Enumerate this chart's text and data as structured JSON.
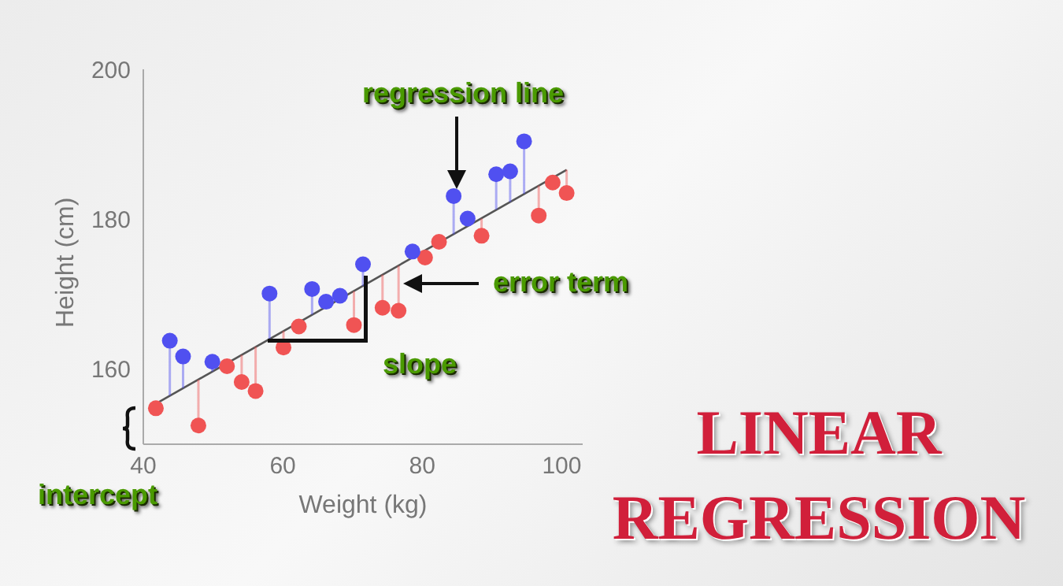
{
  "chart_data": {
    "type": "scatter",
    "title": "LINEAR REGRESSION",
    "xlabel": "Weight (kg)",
    "ylabel": "Height (cm)",
    "annotations": [
      "regression line",
      "error term",
      "slope",
      "intercept"
    ],
    "xlim": [
      40,
      103
    ],
    "ylim": [
      150,
      200
    ],
    "xticks": [
      40,
      60,
      80,
      100
    ],
    "yticks": [
      160,
      180,
      200
    ],
    "grid": false,
    "legend": false,
    "marker": "circle",
    "series": [
      {
        "color": "#f05454",
        "x": [
          41.8,
          47.9,
          52.0,
          54.1,
          56.1,
          60.1,
          62.3,
          70.2,
          74.3,
          76.6,
          80.4,
          82.4,
          88.5,
          96.7,
          98.7,
          100.7
        ],
        "values": [
          154.8,
          152.5,
          160.4,
          158.3,
          157.1,
          162.9,
          165.7,
          165.9,
          168.2,
          167.8,
          174.9,
          177.0,
          177.8,
          180.5,
          184.9,
          183.5
        ],
        "errors": [
          [
            154.8,
            155.4
          ],
          [
            152.5,
            158.6
          ],
          [
            160.4,
            160.8
          ],
          [
            158.3,
            161.9
          ],
          [
            157.1,
            163.0
          ],
          [
            162.9,
            165.1
          ],
          [
            165.7,
            166.3
          ],
          [
            165.9,
            170.4
          ],
          [
            168.2,
            172.6
          ],
          [
            167.8,
            173.8
          ],
          [
            174.9,
            175.8
          ],
          null,
          [
            177.8,
            180.1
          ],
          [
            180.5,
            184.5
          ],
          [
            184.9,
            185.5
          ],
          [
            183.5,
            186.6
          ]
        ]
      },
      {
        "color": "#5050f0",
        "x": [
          43.8,
          45.7,
          49.9,
          58.1,
          64.2,
          66.2,
          68.2,
          71.5,
          78.6,
          84.5,
          86.5,
          90.6,
          92.6,
          94.6
        ],
        "values": [
          163.8,
          161.7,
          161.0,
          170.1,
          170.7,
          169.0,
          169.8,
          174.0,
          175.7,
          183.1,
          180.1,
          186.0,
          186.4,
          190.4
        ],
        "errors": [
          [
            156.5,
            163.8
          ],
          [
            157.5,
            161.7
          ],
          [
            159.7,
            161.0
          ],
          [
            164.0,
            170.1
          ],
          [
            167.3,
            170.7
          ],
          [
            168.3,
            169.0
          ],
          [
            169.4,
            169.8
          ],
          [
            171.1,
            174.0
          ],
          [
            174.9,
            175.7
          ],
          [
            178.0,
            183.1
          ],
          [
            179.1,
            180.1
          ],
          [
            181.3,
            186.0
          ],
          [
            182.3,
            186.4
          ],
          [
            183.4,
            190.4
          ]
        ]
      },
      {
        "type": "line",
        "marker": "none",
        "color": "#555555",
        "x": [
          41.8,
          100.7
        ],
        "values": [
          155.4,
          186.6
        ]
      }
    ]
  }
}
